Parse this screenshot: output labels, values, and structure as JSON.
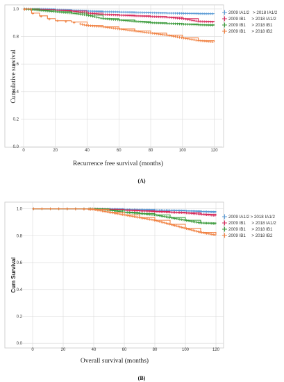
{
  "chart_data": [
    {
      "type": "line",
      "panel_label": "(A)",
      "xlabel": "Recurrence free survival (months)",
      "ylabel": "Cumulative survival",
      "xlim": [
        0,
        125
      ],
      "ylim": [
        0,
        1.03
      ],
      "xticks": [
        "0",
        "20",
        "40",
        "60",
        "80",
        "100",
        "120"
      ],
      "yticks": [
        "0.0",
        "0.2",
        "0.4",
        "0.6",
        "0.8",
        "1.0"
      ],
      "legend_position": "right",
      "series": [
        {
          "name": "2009 IA1/2   > 2018 IA1/2",
          "color": "#5b9bd5",
          "x": [
            0,
            10,
            20,
            30,
            40,
            50,
            60,
            70,
            80,
            90,
            100,
            110,
            120
          ],
          "y": [
            1.0,
            1.0,
            0.995,
            0.99,
            0.985,
            0.98,
            0.978,
            0.975,
            0.972,
            0.97,
            0.968,
            0.966,
            0.965
          ]
        },
        {
          "name": "2009 IB1     > 2018 IA1/2",
          "color": "#d6285a",
          "x": [
            0,
            10,
            20,
            30,
            40,
            50,
            60,
            70,
            80,
            90,
            100,
            110,
            120
          ],
          "y": [
            1.0,
            0.995,
            0.99,
            0.985,
            0.97,
            0.96,
            0.955,
            0.95,
            0.945,
            0.94,
            0.93,
            0.91,
            0.905
          ]
        },
        {
          "name": "2009 IB1     > 2018 IB1",
          "color": "#3a9a3a",
          "x": [
            0,
            10,
            20,
            30,
            40,
            50,
            60,
            70,
            80,
            90,
            100,
            110,
            120
          ],
          "y": [
            1.0,
            0.99,
            0.98,
            0.97,
            0.955,
            0.93,
            0.92,
            0.91,
            0.9,
            0.895,
            0.89,
            0.885,
            0.88
          ]
        },
        {
          "name": "2009 IB1     > 2018 IB2",
          "color": "#f08040",
          "x": [
            0,
            5,
            10,
            15,
            20,
            30,
            40,
            50,
            60,
            70,
            80,
            90,
            100,
            110,
            120
          ],
          "y": [
            1.0,
            0.97,
            0.95,
            0.93,
            0.915,
            0.905,
            0.88,
            0.87,
            0.855,
            0.84,
            0.825,
            0.81,
            0.79,
            0.77,
            0.76
          ]
        }
      ]
    },
    {
      "type": "line",
      "panel_label": "(B)",
      "xlabel": "Overall survival (months)",
      "ylabel": "Cum Survival",
      "xlim": [
        -5,
        125
      ],
      "ylim": [
        -0.03,
        1.05
      ],
      "xticks": [
        "0",
        "20",
        "40",
        "60",
        "80",
        "100",
        "120"
      ],
      "yticks": [
        "0.0",
        "0.2",
        "0.4",
        "0.6",
        "0.8",
        "1.0"
      ],
      "legend_position": "right",
      "series": [
        {
          "name": "2009 IA1/2 > 2018 IA1/2",
          "color": "#5b9bd5",
          "x": [
            0,
            20,
            40,
            60,
            80,
            100,
            110,
            120
          ],
          "y": [
            1.0,
            1.0,
            1.0,
            0.995,
            0.99,
            0.985,
            0.98,
            0.975
          ]
        },
        {
          "name": "2009 IB1     > 2018 IA1/2",
          "color": "#d6285a",
          "x": [
            0,
            20,
            40,
            50,
            60,
            70,
            80,
            90,
            100,
            110,
            120
          ],
          "y": [
            1.0,
            1.0,
            1.0,
            0.995,
            0.99,
            0.985,
            0.98,
            0.975,
            0.97,
            0.96,
            0.95
          ]
        },
        {
          "name": "2009 IB1     > 2018 IB1",
          "color": "#3a9a3a",
          "x": [
            0,
            20,
            40,
            50,
            60,
            70,
            80,
            90,
            100,
            110,
            120
          ],
          "y": [
            1.0,
            1.0,
            1.0,
            0.99,
            0.975,
            0.965,
            0.955,
            0.935,
            0.915,
            0.895,
            0.89
          ]
        },
        {
          "name": "2009 IB1     > 2018 IB2",
          "color": "#f08040",
          "x": [
            0,
            20,
            40,
            50,
            60,
            70,
            80,
            90,
            100,
            110,
            120
          ],
          "y": [
            1.0,
            1.0,
            0.995,
            0.975,
            0.955,
            0.935,
            0.915,
            0.885,
            0.855,
            0.825,
            0.805
          ]
        }
      ]
    }
  ]
}
